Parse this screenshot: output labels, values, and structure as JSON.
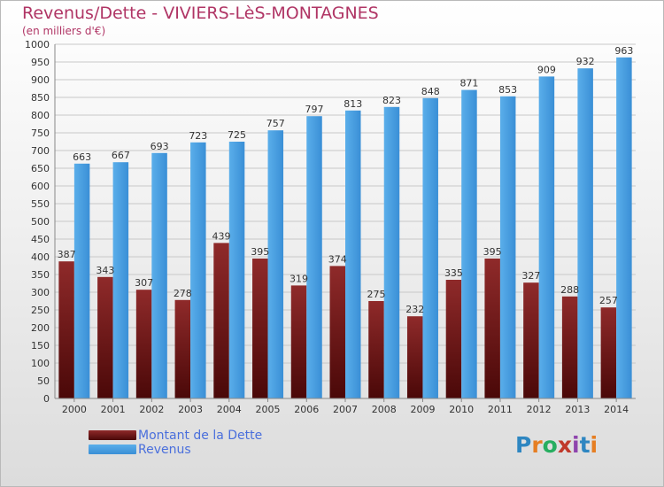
{
  "header": {
    "title": "Revenus/Dette - VIVIERS-LèS-MONTAGNES",
    "subtitle": "(en milliers d'€)"
  },
  "legend": [
    {
      "label": "Montant de la Dette",
      "color": "#6e1a1a"
    },
    {
      "label": "Revenus",
      "color": "#4fa3e3"
    }
  ],
  "logo": {
    "text": "Proxiti",
    "colors": [
      "#2e86c1",
      "#e67e22",
      "#27ae60",
      "#c0392b",
      "#8e44ad",
      "#2e86c1",
      "#e67e22"
    ]
  },
  "chart_data": {
    "type": "bar",
    "title": "Revenus/Dette - VIVIERS-LèS-MONTAGNES",
    "ylabel": "(en milliers d'€)",
    "categories": [
      "2000",
      "2001",
      "2002",
      "2003",
      "2004",
      "2005",
      "2006",
      "2007",
      "2008",
      "2009",
      "2010",
      "2011",
      "2012",
      "2013",
      "2014"
    ],
    "series": [
      {
        "name": "Montant de la Dette",
        "color": "#6e1a1a",
        "values": [
          387,
          343,
          307,
          278,
          439,
          395,
          319,
          374,
          275,
          232,
          335,
          395,
          327,
          288,
          257
        ]
      },
      {
        "name": "Revenus",
        "color": "#4fa3e3",
        "values": [
          663,
          667,
          693,
          723,
          725,
          757,
          797,
          813,
          823,
          848,
          871,
          853,
          909,
          932,
          963
        ]
      }
    ],
    "ylim": [
      0,
      1000
    ],
    "yticks": [
      0,
      50,
      100,
      150,
      200,
      250,
      300,
      350,
      400,
      450,
      500,
      550,
      600,
      650,
      700,
      750,
      800,
      850,
      900,
      950,
      1000
    ],
    "grid": true,
    "legend_position": "bottom-left"
  }
}
